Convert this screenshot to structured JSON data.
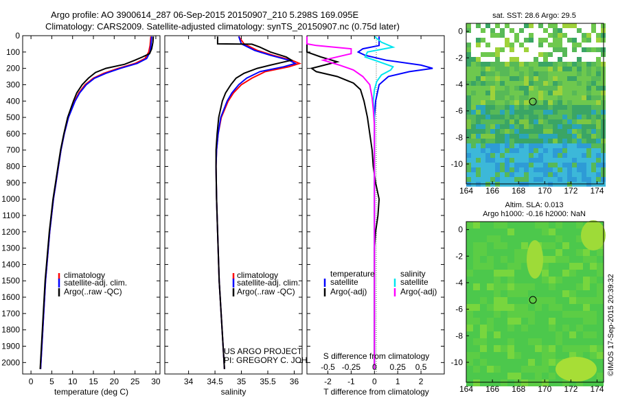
{
  "header": {
    "line1": "Argo profile: AO 3900614_287 06-Sep-2015 20150907_210 5.298S 169.095E",
    "line2": "Climatology: CARS2009. Satellite-adjusted climatology: synTS_20150907.nc (0.75d later)"
  },
  "colors": {
    "clim": "#ff0000",
    "sat": "#0000ff",
    "argo": "#000000",
    "sat_s": "#00e5ee",
    "argo_s": "#ff00ff",
    "sst_bg": "#2e9bd6",
    "sla_bg": "#4cc84c"
  },
  "credit": {
    "project": "US ARGO PROJECT",
    "pi": "PI: GREGORY C. JOHNSON"
  },
  "side_stamp": "©IMOS 17-Sep-2015 20:39:32",
  "chart_data": [
    {
      "id": "temperature",
      "type": "line",
      "xlabel": "temperature (deg C)",
      "xlim": [
        -2,
        31
      ],
      "ylim": [
        0,
        2070
      ],
      "xticks": [
        0,
        5,
        10,
        15,
        20,
        25,
        30
      ],
      "xtick_labels": [
        "0",
        "5",
        "10",
        "15",
        "20",
        "25",
        "30"
      ],
      "yticks": [
        0,
        100,
        200,
        300,
        400,
        500,
        600,
        700,
        800,
        900,
        1000,
        1100,
        1200,
        1300,
        1400,
        1500,
        1600,
        1700,
        1800,
        1900,
        2000
      ],
      "ytick_labels": [
        "0",
        "100",
        "200",
        "300",
        "400",
        "500",
        "600",
        "700",
        "800",
        "900",
        "1000",
        "1100",
        "1200",
        "1300",
        "1400",
        "1500",
        "1600",
        "1700",
        "1800",
        "1900",
        "2000"
      ],
      "legend": [
        "climatology",
        "satellite-adj. clim.",
        "Argo(..raw -QC)"
      ],
      "series": [
        {
          "name": "climatology",
          "color_key": "clim",
          "depth": [
            5,
            60,
            100,
            140,
            170,
            200,
            230,
            260,
            300,
            350,
            400,
            500,
            600,
            700,
            800,
            900,
            1000,
            1200,
            1500,
            2040
          ],
          "values": [
            28.8,
            28.6,
            28.3,
            27.4,
            25,
            21,
            17.5,
            15,
            13,
            11.5,
            10.5,
            9,
            8,
            7.2,
            6.6,
            6,
            5.4,
            4.5,
            3.5,
            2.3
          ]
        },
        {
          "name": "satellite-adj. clim.",
          "color_key": "sat",
          "depth": [
            5,
            60,
            100,
            140,
            170,
            200,
            230,
            260,
            300,
            350,
            400,
            500,
            600,
            700,
            800,
            900,
            1000,
            1200,
            1500,
            2040
          ],
          "values": [
            29,
            28.8,
            28.6,
            27.8,
            25.5,
            21.5,
            18,
            15.3,
            13.3,
            11.7,
            10.6,
            9,
            8,
            7.2,
            6.6,
            6,
            5.4,
            4.5,
            3.5,
            2.3
          ]
        },
        {
          "name": "Argo(..raw -QC)",
          "color_key": "argo",
          "depth": [
            5,
            40,
            80,
            110,
            130,
            150,
            175,
            200,
            225,
            260,
            300,
            350,
            400,
            500,
            600,
            700,
            800,
            900,
            1000,
            1200,
            1500,
            2040
          ],
          "values": [
            29.4,
            29.3,
            29,
            28.5,
            26.8,
            25,
            22.5,
            18,
            15.5,
            13.8,
            12.3,
            11,
            10.2,
            8.8,
            7.9,
            7.1,
            6.5,
            5.9,
            5.3,
            4.4,
            3.4,
            2.2
          ]
        }
      ]
    },
    {
      "id": "salinity",
      "type": "line",
      "xlabel": "salinity",
      "xlim": [
        33.55,
        36.15
      ],
      "ylim": [
        0,
        2070
      ],
      "xticks": [
        34,
        34.5,
        35,
        35.5,
        36
      ],
      "xtick_labels": [
        "34",
        "34.5",
        "35",
        "35.5",
        "36"
      ],
      "legend": [
        "climatology",
        "satellite-adj. clim.",
        "Argo(..raw -QC)"
      ],
      "series": [
        {
          "name": "climatology",
          "color_key": "clim",
          "depth": [
            5,
            50,
            90,
            120,
            150,
            170,
            190,
            220,
            260,
            300,
            350,
            400,
            500,
            600,
            700,
            800,
            1000,
            1200,
            1500,
            2040
          ],
          "values": [
            34.95,
            35.05,
            35.3,
            35.6,
            35.95,
            36.1,
            35.9,
            35.45,
            35.2,
            35.0,
            34.85,
            34.75,
            34.62,
            34.56,
            34.53,
            34.52,
            34.53,
            34.55,
            34.58,
            34.68
          ]
        },
        {
          "name": "satellite-adj. clim.",
          "color_key": "sat",
          "depth": [
            5,
            50,
            90,
            120,
            150,
            170,
            190,
            220,
            260,
            300,
            350,
            400,
            500,
            600,
            700,
            800,
            1000,
            1200,
            1500,
            2040
          ],
          "values": [
            34.95,
            35.0,
            35.25,
            35.55,
            35.9,
            36.02,
            35.8,
            35.35,
            35.1,
            34.95,
            34.82,
            34.73,
            34.61,
            34.56,
            34.53,
            34.52,
            34.53,
            34.55,
            34.58,
            34.68
          ]
        },
        {
          "name": "Argo(..raw -QC)",
          "color_key": "argo",
          "depth": [
            5,
            50,
            52,
            70,
            100,
            130,
            150,
            165,
            180,
            200,
            230,
            260,
            300,
            350,
            400,
            500,
            600,
            700,
            800,
            1000,
            1200,
            1500,
            2040
          ],
          "values": [
            34.55,
            34.55,
            35.2,
            35.35,
            35.55,
            35.85,
            35.95,
            35.75,
            35.55,
            35.3,
            35.05,
            34.9,
            34.8,
            34.7,
            34.64,
            34.57,
            34.54,
            34.52,
            34.52,
            34.53,
            34.55,
            34.58,
            34.68
          ]
        }
      ]
    },
    {
      "id": "differences",
      "type": "line",
      "xlabel": "T difference from climatology",
      "xlabel_top": "S difference from climatology",
      "xlim": [
        -2.9,
        3.0
      ],
      "ylim": [
        0,
        2070
      ],
      "xticks": [
        -2,
        -1,
        0,
        1,
        2
      ],
      "xtick_labels": [
        "-2",
        "-1",
        "0",
        "1",
        "2"
      ],
      "sticks": [
        -2,
        -1,
        0,
        1,
        2
      ],
      "stick_labels": [
        "-0.5",
        "-0.25",
        "0",
        "0.25",
        "0.5"
      ],
      "legend_titles": [
        "temperature",
        "salinity"
      ],
      "legend": [
        "satellite",
        "Argo(-adj)",
        "satellite",
        "Argo(-adj)"
      ],
      "series": [
        {
          "name": "T satellite",
          "color_key": "sat",
          "depth": [
            5,
            60,
            80,
            100,
            120,
            150,
            180,
            200,
            220,
            250,
            300,
            400,
            500,
            700,
            1000,
            2040
          ],
          "values": [
            0.2,
            0.2,
            -0.5,
            -0.7,
            -0.4,
            0.5,
            2.0,
            2.5,
            1.5,
            0.6,
            0.2,
            0.05,
            0,
            0,
            0,
            0
          ]
        },
        {
          "name": "T Argo(-adj)",
          "color_key": "argo",
          "depth": [
            5,
            100,
            130,
            160,
            200,
            220,
            250,
            290,
            330,
            400,
            500,
            600,
            700,
            800,
            900,
            1000,
            1100,
            1200,
            1300,
            1500,
            2040
          ],
          "values": [
            -2.9,
            -2.9,
            -2.3,
            -1.6,
            -2.7,
            -2.5,
            -1.6,
            -0.9,
            -0.6,
            -0.45,
            -0.3,
            -0.2,
            -0.1,
            -0.05,
            0.05,
            0.2,
            0.15,
            0.05,
            0.0,
            0.0,
            0.0
          ]
        },
        {
          "name": "S satellite",
          "color_key": "sat_s",
          "depth": [
            5,
            40,
            70,
            100,
            130,
            160,
            190,
            210,
            240,
            280,
            330,
            400,
            500,
            700,
            1000,
            2040
          ],
          "values": [
            0,
            0.3,
            0.8,
            -0.3,
            -0.4,
            0.2,
            0.8,
            0.7,
            0.3,
            0.1,
            0.0,
            -0.05,
            0,
            0,
            0,
            0
          ]
        },
        {
          "name": "S Argo(-adj)",
          "color_key": "argo_s",
          "depth": [
            5,
            50,
            60,
            80,
            110,
            150,
            180,
            210,
            250,
            300,
            380,
            450,
            550,
            700,
            1000,
            2040
          ],
          "values": [
            -2.9,
            -2.9,
            -2.5,
            -1.0,
            -1.0,
            -2.2,
            -1.5,
            -0.9,
            -0.5,
            -0.2,
            -0.1,
            -0.05,
            0,
            0,
            0,
            0
          ]
        }
      ]
    },
    {
      "id": "sst_map",
      "type": "heatmap",
      "title": "sat. SST: 28.6 Argo: 29.5",
      "xlim": [
        164,
        174.5
      ],
      "ylim": [
        -11.5,
        0.6
      ],
      "xticks": [
        164,
        166,
        168,
        170,
        172,
        174
      ],
      "xtick_labels": [
        "164",
        "166",
        "168",
        "170",
        "172",
        "174"
      ],
      "yticks": [
        0,
        -2,
        -4,
        -6,
        -8,
        -10
      ],
      "ytick_labels": [
        "0",
        "-2",
        "-4",
        "-6",
        "-8",
        "-10"
      ],
      "marker": {
        "lon": 169.095,
        "lat": -5.298
      }
    },
    {
      "id": "sla_map",
      "type": "heatmap",
      "title": "Altim. SLA: 0.013",
      "subtitle": "Argo h1000: -0.16 h2000: NaN",
      "xlim": [
        164,
        174.5
      ],
      "ylim": [
        -11.5,
        0.6
      ],
      "xticks": [
        164,
        166,
        168,
        170,
        172,
        174
      ],
      "xtick_labels": [
        "164",
        "166",
        "168",
        "170",
        "172",
        "174"
      ],
      "yticks": [
        0,
        -2,
        -4,
        -6,
        -8,
        -10
      ],
      "ytick_labels": [
        "0",
        "-2",
        "-4",
        "-6",
        "-8",
        "-10"
      ],
      "marker": {
        "lon": 169.095,
        "lat": -5.298
      }
    }
  ]
}
